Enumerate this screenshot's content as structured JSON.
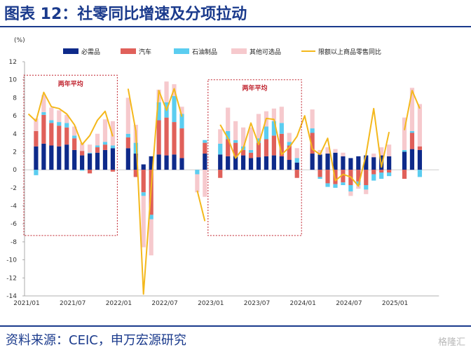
{
  "header": {
    "title": "图表 12：社零同比增速及分项拉动"
  },
  "footer": {
    "source": "资料来源：CEIC，申万宏源研究",
    "watermark": "格隆汇"
  },
  "colors": {
    "necessities": "#0e2a8a",
    "autos": "#e0605a",
    "petroleum": "#5bcdf0",
    "other": "#f6c9cd",
    "total_line": "#f4b81c",
    "annotation_box": "#c0232e",
    "title": "#1a3a8c"
  },
  "chart_data": {
    "type": "bar",
    "unit_label": "(%)",
    "ylim": [
      -14,
      12
    ],
    "yticks": [
      -14,
      -12,
      -10,
      -8,
      -6,
      -4,
      -2,
      0,
      2,
      4,
      6,
      8,
      10,
      12
    ],
    "x_tick_labels": [
      {
        "index": 0,
        "label": "2021/01"
      },
      {
        "index": 6,
        "label": "2021/07"
      },
      {
        "index": 12,
        "label": "2022/01"
      },
      {
        "index": 18,
        "label": "2022/07"
      },
      {
        "index": 24,
        "label": "2023/01"
      },
      {
        "index": 30,
        "label": "2023/07"
      },
      {
        "index": 36,
        "label": "2024/01"
      },
      {
        "index": 42,
        "label": "2024/07"
      },
      {
        "index": 48,
        "label": "2025/01"
      }
    ],
    "categories": [
      "2021/01",
      "2021/02",
      "2021/03",
      "2021/04",
      "2021/05",
      "2021/06",
      "2021/07",
      "2021/08",
      "2021/09",
      "2021/10",
      "2021/11",
      "2021/12",
      "2022/01",
      "2022/02",
      "2022/03",
      "2022/04",
      "2022/05",
      "2022/06",
      "2022/07",
      "2022/08",
      "2022/09",
      "2022/10",
      "2022/11",
      "2022/12",
      "2023/01",
      "2023/02",
      "2023/03",
      "2023/04",
      "2023/05",
      "2023/06",
      "2023/07",
      "2023/08",
      "2023/09",
      "2023/10",
      "2023/11",
      "2023/12",
      "2024/01",
      "2024/02",
      "2024/03",
      "2024/04",
      "2024/05",
      "2024/06",
      "2024/07",
      "2024/08",
      "2024/09",
      "2024/10",
      "2024/11",
      "2024/12",
      "2025/01",
      "2025/02",
      "2025/03",
      "2025/04",
      "2025/05",
      "2025/06"
    ],
    "legend": [
      {
        "name": "必需品",
        "kind": "bar"
      },
      {
        "name": "汽车",
        "kind": "bar"
      },
      {
        "name": "石油制品",
        "kind": "bar"
      },
      {
        "name": "其他可选品",
        "kind": "bar"
      },
      {
        "name": "限额以上商品零售同比",
        "kind": "line"
      }
    ],
    "series": [
      {
        "name": "必需品",
        "values": [
          null,
          2.6,
          2.9,
          2.7,
          2.6,
          2.8,
          2.2,
          1.6,
          1.8,
          1.9,
          2.2,
          2.4,
          null,
          2.4,
          1.8,
          0.6,
          1.5,
          1.7,
          1.6,
          1.7,
          1.3,
          null,
          0,
          1.8,
          null,
          1.7,
          1.5,
          1.5,
          1.6,
          1.3,
          1.4,
          1.5,
          1.6,
          1.5,
          1.1,
          0.8,
          null,
          1.8,
          1.7,
          1.8,
          1.9,
          1.5,
          1.3,
          1.5,
          1.6,
          1.4,
          1.6,
          1.5,
          null,
          2.0,
          2.3,
          2.2,
          null,
          null
        ]
      },
      {
        "name": "汽车",
        "values": [
          null,
          1.7,
          3.2,
          2.5,
          2.3,
          1.9,
          1.3,
          0.5,
          -0.4,
          0.6,
          0.6,
          -0.2,
          null,
          1.2,
          -0.8,
          -2.5,
          -5.0,
          3.8,
          4.2,
          3.6,
          3.3,
          null,
          0,
          1.2,
          null,
          -0.9,
          1.9,
          1.5,
          0.6,
          0.6,
          1.6,
          1.9,
          2.2,
          2.5,
          1.6,
          -0.9,
          null,
          2.3,
          -0.8,
          -1.5,
          -1.6,
          -1.4,
          -1.7,
          -1.3,
          -1.7,
          -0.5,
          -0.3,
          -0.3,
          null,
          -1.0,
          1.8,
          0.4,
          null,
          null
        ]
      },
      {
        "name": "石油制品",
        "values": [
          null,
          -0.6,
          0.3,
          0.3,
          0.4,
          0.5,
          0.3,
          -0.1,
          0.1,
          0.2,
          0.3,
          0.3,
          null,
          0.4,
          1.2,
          -0.4,
          -0.5,
          2.0,
          1.7,
          2.9,
          1.6,
          null,
          -0.5,
          0.3,
          null,
          1.2,
          0.9,
          0.3,
          0.4,
          0.3,
          0.5,
          1.4,
          1.6,
          1.2,
          0.4,
          0.5,
          null,
          0.5,
          -0.2,
          -0.4,
          -0.4,
          -0.3,
          -0.7,
          -0.4,
          -0.5,
          -0.7,
          -0.7,
          -0.4,
          null,
          0.2,
          0.2,
          -0.8,
          null,
          null
        ]
      },
      {
        "name": "其他可选品",
        "values": [
          null,
          1.4,
          1.9,
          1.4,
          1.3,
          0.9,
          1.0,
          0.9,
          0.9,
          1.3,
          2.5,
          2.7,
          null,
          4.0,
          2.0,
          -5.7,
          -4.0,
          1.4,
          2.3,
          1.3,
          0.8,
          null,
          -2.0,
          -3.0,
          null,
          1.6,
          2.6,
          2.1,
          2.1,
          2.5,
          2.7,
          1.7,
          1.4,
          1.8,
          1.0,
          1.1,
          null,
          2.1,
          0.5,
          0.7,
          0.4,
          0.4,
          -0.5,
          -0.4,
          -0.5,
          0.4,
          0.9,
          1.3,
          null,
          3.6,
          4.8,
          4.7,
          null,
          null
        ]
      },
      {
        "name": "限额以上商品零售同比",
        "type": "line",
        "values": [
          6.2,
          5.4,
          8.6,
          7.0,
          6.8,
          6.2,
          5.0,
          2.8,
          3.8,
          5.5,
          6.5,
          3.7,
          null,
          9.0,
          4.3,
          -13.8,
          -2.0,
          8.8,
          6.6,
          9.0,
          5.9,
          null,
          -2.3,
          -5.7,
          null,
          5.0,
          3.5,
          1.3,
          2.4,
          5.2,
          2.8,
          5.7,
          5.6,
          1.7,
          2.5,
          3.7,
          6.0,
          2.3,
          1.7,
          3.5,
          -1.2,
          -0.5,
          -0.8,
          -1.8,
          1.7,
          6.8,
          0.3,
          4.2,
          null,
          4.4,
          8.8,
          6.8,
          null,
          null
        ]
      }
    ],
    "annotations": [
      {
        "label": "两年平均",
        "from_index": 0,
        "to_index": 11,
        "y_top": 10.5,
        "y_bottom": -7.3
      },
      {
        "label": "两年平均",
        "from_index": 24,
        "to_index": 35,
        "y_top": 10.0,
        "y_bottom": -7.3
      }
    ]
  }
}
